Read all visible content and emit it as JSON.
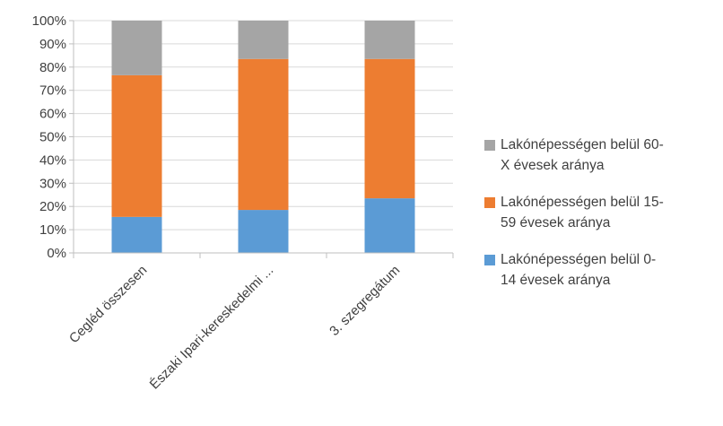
{
  "chart_data": {
    "type": "bar",
    "stacked": true,
    "percent": true,
    "categories": [
      "Cegléd összesen",
      "Északi Ipari-kereskedelmi ...",
      "3. szegregátum"
    ],
    "series": [
      {
        "name": "Lakónépességen belül 0-14 évesek aránya",
        "color": "#5B9BD5",
        "values": [
          15.5,
          18.5,
          23.5
        ]
      },
      {
        "name": "Lakónépességen belül 15-59 évesek aránya",
        "color": "#ED7D31",
        "values": [
          61.0,
          65.0,
          60.0
        ]
      },
      {
        "name": "Lakónépességen belül 60-X évesek aránya",
        "color": "#A5A5A5",
        "values": [
          23.5,
          16.5,
          16.5
        ]
      }
    ],
    "yticks": [
      "0%",
      "10%",
      "20%",
      "30%",
      "40%",
      "50%",
      "60%",
      "70%",
      "80%",
      "90%",
      "100%"
    ],
    "ylim": [
      0,
      100
    ],
    "grid": true,
    "legend_position": "right",
    "legend": [
      {
        "line1": "Lakónépességen belül 60-",
        "line2": "X évesek aránya",
        "color": "#A5A5A5"
      },
      {
        "line1": "Lakónépességen belül 15-",
        "line2": "59 évesek aránya",
        "color": "#ED7D31"
      },
      {
        "line1": "Lakónépességen belül 0-",
        "line2": "14 évesek aránya",
        "color": "#5B9BD5"
      }
    ]
  }
}
